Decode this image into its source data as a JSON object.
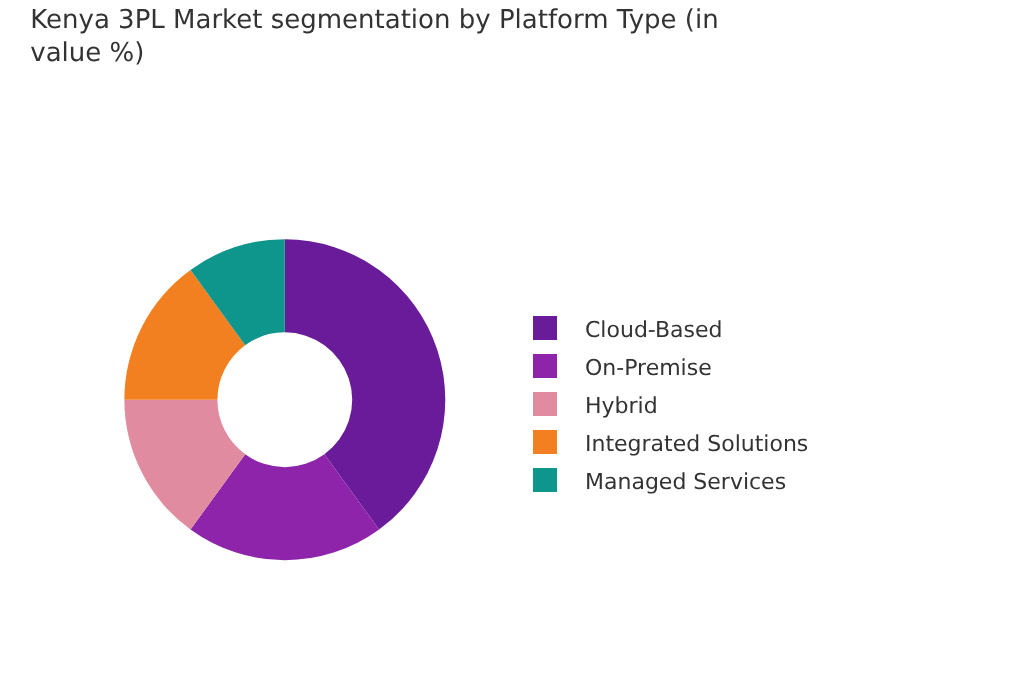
{
  "chart_data": {
    "type": "donut",
    "title": "Kenya 3PL Market segmentation by Platform Type (in value %)",
    "categories": [
      "Cloud-Based",
      "On-Premise",
      "Hybrid",
      "Integrated Solutions",
      "Managed Services"
    ],
    "values": [
      40,
      20,
      15,
      15,
      10
    ],
    "colors": [
      "#6a1b9a",
      "#8e24aa",
      "#e08ba0",
      "#f28020",
      "#0f968c"
    ],
    "legend": "right"
  }
}
